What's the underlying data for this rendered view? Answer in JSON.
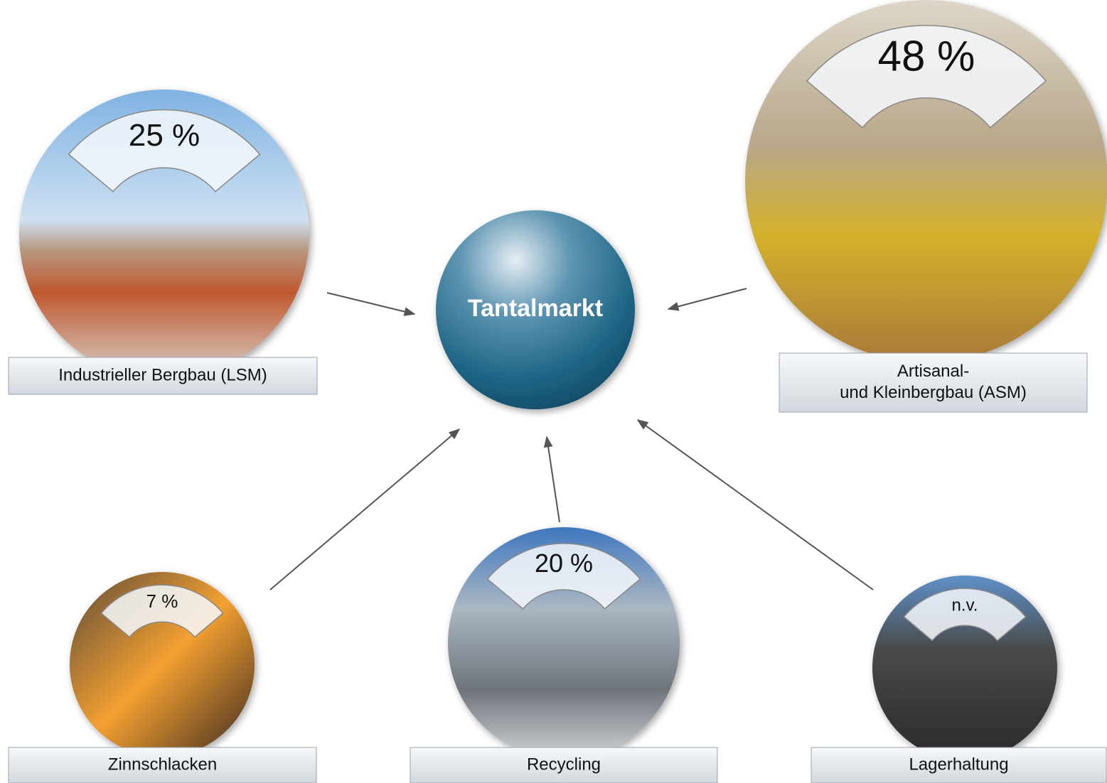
{
  "center": {
    "label": "Tantalmarkt"
  },
  "nodes": [
    {
      "share": "25 %",
      "label": [
        "Industrieller Bergbau (LSM)"
      ]
    },
    {
      "share": "48 %",
      "label": [
        "Artisanal-",
        "und Kleinbergbau (ASM)"
      ]
    },
    {
      "share": "7 %",
      "label": [
        "Zinnschlacken"
      ]
    },
    {
      "share": "20 %",
      "label": [
        "Recycling"
      ]
    },
    {
      "share": "n.v.",
      "label": [
        "Lagerhaltung"
      ]
    }
  ]
}
